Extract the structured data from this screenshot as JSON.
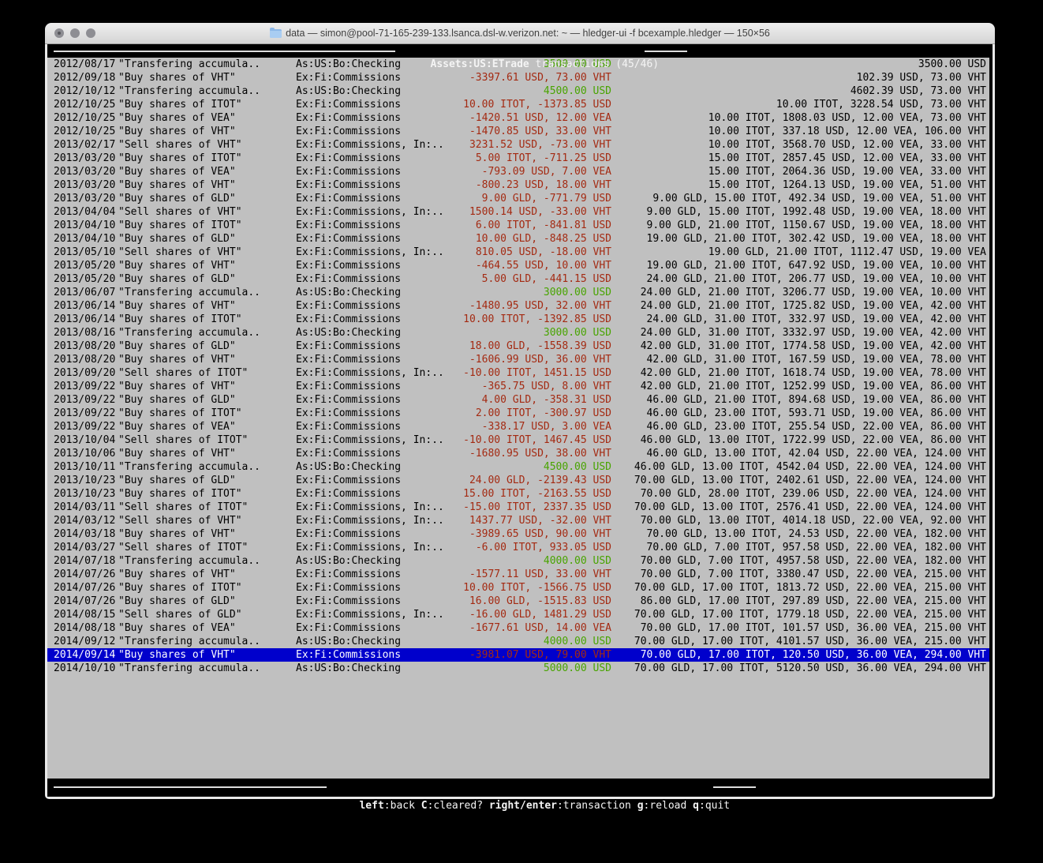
{
  "window": {
    "title": "data — simon@pool-71-165-239-133.lsanca.dsl-w.verizon.net: ~ — hledger-ui -f bcexample.hledger — 150×56",
    "buttons": [
      "close",
      "minimize",
      "zoom"
    ]
  },
  "screen": {
    "account": "Assets:US:ETrade",
    "subtitle": " transactions (45/46)"
  },
  "colors": {
    "terminal_bg": "#c0c0c0",
    "positive_amount": "#48a400",
    "negative_amount": "#a42a12",
    "selection_bg": "#0000cc",
    "band_bg": "#000000",
    "band_text": "#f4f4f4"
  },
  "footer": {
    "keys": [
      {
        "key": "left",
        "desc": ":back"
      },
      {
        "key": "C",
        "desc": ":cleared?"
      },
      {
        "key": "right/enter",
        "desc": ":transaction"
      },
      {
        "key": "g",
        "desc": ":reload"
      },
      {
        "key": "q",
        "desc": ":quit"
      }
    ]
  },
  "transactions": [
    {
      "date": "2012/08/17",
      "desc": "\"Transfering accumula..",
      "account": "As:US:Bo:Checking",
      "change": "3500.00 USD",
      "change_color": "green",
      "balance": "3500.00 USD",
      "selected": false
    },
    {
      "date": "2012/09/18",
      "desc": "\"Buy shares of VHT\"",
      "account": "Ex:Fi:Commissions",
      "change": "-3397.61 USD, 73.00 VHT",
      "change_color": "red",
      "balance": "102.39 USD, 73.00 VHT",
      "selected": false
    },
    {
      "date": "2012/10/12",
      "desc": "\"Transfering accumula..",
      "account": "As:US:Bo:Checking",
      "change": "4500.00 USD",
      "change_color": "green",
      "balance": "4602.39 USD, 73.00 VHT",
      "selected": false
    },
    {
      "date": "2012/10/25",
      "desc": "\"Buy shares of ITOT\"",
      "account": "Ex:Fi:Commissions",
      "change": "10.00 ITOT, -1373.85 USD",
      "change_color": "red",
      "balance": "10.00 ITOT, 3228.54 USD, 73.00 VHT",
      "selected": false
    },
    {
      "date": "2012/10/25",
      "desc": "\"Buy shares of VEA\"",
      "account": "Ex:Fi:Commissions",
      "change": "-1420.51 USD, 12.00 VEA",
      "change_color": "red",
      "balance": "10.00 ITOT, 1808.03 USD, 12.00 VEA, 73.00 VHT",
      "selected": false
    },
    {
      "date": "2012/10/25",
      "desc": "\"Buy shares of VHT\"",
      "account": "Ex:Fi:Commissions",
      "change": "-1470.85 USD, 33.00 VHT",
      "change_color": "red",
      "balance": "10.00 ITOT, 337.18 USD, 12.00 VEA, 106.00 VHT",
      "selected": false
    },
    {
      "date": "2013/02/17",
      "desc": "\"Sell shares of VHT\"",
      "account": "Ex:Fi:Commissions, In:..",
      "change": "3231.52 USD, -73.00 VHT",
      "change_color": "red",
      "balance": "10.00 ITOT, 3568.70 USD, 12.00 VEA, 33.00 VHT",
      "selected": false
    },
    {
      "date": "2013/03/20",
      "desc": "\"Buy shares of ITOT\"",
      "account": "Ex:Fi:Commissions",
      "change": "5.00 ITOT, -711.25 USD",
      "change_color": "red",
      "balance": "15.00 ITOT, 2857.45 USD, 12.00 VEA, 33.00 VHT",
      "selected": false
    },
    {
      "date": "2013/03/20",
      "desc": "\"Buy shares of VEA\"",
      "account": "Ex:Fi:Commissions",
      "change": "-793.09 USD, 7.00 VEA",
      "change_color": "red",
      "balance": "15.00 ITOT, 2064.36 USD, 19.00 VEA, 33.00 VHT",
      "selected": false
    },
    {
      "date": "2013/03/20",
      "desc": "\"Buy shares of VHT\"",
      "account": "Ex:Fi:Commissions",
      "change": "-800.23 USD, 18.00 VHT",
      "change_color": "red",
      "balance": "15.00 ITOT, 1264.13 USD, 19.00 VEA, 51.00 VHT",
      "selected": false
    },
    {
      "date": "2013/03/20",
      "desc": "\"Buy shares of GLD\"",
      "account": "Ex:Fi:Commissions",
      "change": "9.00 GLD, -771.79 USD",
      "change_color": "red",
      "balance": "9.00 GLD, 15.00 ITOT, 492.34 USD, 19.00 VEA, 51.00 VHT",
      "selected": false
    },
    {
      "date": "2013/04/04",
      "desc": "\"Sell shares of VHT\"",
      "account": "Ex:Fi:Commissions, In:..",
      "change": "1500.14 USD, -33.00 VHT",
      "change_color": "red",
      "balance": "9.00 GLD, 15.00 ITOT, 1992.48 USD, 19.00 VEA, 18.00 VHT",
      "selected": false
    },
    {
      "date": "2013/04/10",
      "desc": "\"Buy shares of ITOT\"",
      "account": "Ex:Fi:Commissions",
      "change": "6.00 ITOT, -841.81 USD",
      "change_color": "red",
      "balance": "9.00 GLD, 21.00 ITOT, 1150.67 USD, 19.00 VEA, 18.00 VHT",
      "selected": false
    },
    {
      "date": "2013/04/10",
      "desc": "\"Buy shares of GLD\"",
      "account": "Ex:Fi:Commissions",
      "change": "10.00 GLD, -848.25 USD",
      "change_color": "red",
      "balance": "19.00 GLD, 21.00 ITOT, 302.42 USD, 19.00 VEA, 18.00 VHT",
      "selected": false
    },
    {
      "date": "2013/05/10",
      "desc": "\"Sell shares of VHT\"",
      "account": "Ex:Fi:Commissions, In:..",
      "change": "810.05 USD, -18.00 VHT",
      "change_color": "red",
      "balance": "19.00 GLD, 21.00 ITOT, 1112.47 USD, 19.00 VEA",
      "selected": false
    },
    {
      "date": "2013/05/20",
      "desc": "\"Buy shares of VHT\"",
      "account": "Ex:Fi:Commissions",
      "change": "-464.55 USD, 10.00 VHT",
      "change_color": "red",
      "balance": "19.00 GLD, 21.00 ITOT, 647.92 USD, 19.00 VEA, 10.00 VHT",
      "selected": false
    },
    {
      "date": "2013/05/20",
      "desc": "\"Buy shares of GLD\"",
      "account": "Ex:Fi:Commissions",
      "change": "5.00 GLD, -441.15 USD",
      "change_color": "red",
      "balance": "24.00 GLD, 21.00 ITOT, 206.77 USD, 19.00 VEA, 10.00 VHT",
      "selected": false
    },
    {
      "date": "2013/06/07",
      "desc": "\"Transfering accumula..",
      "account": "As:US:Bo:Checking",
      "change": "3000.00 USD",
      "change_color": "green",
      "balance": "24.00 GLD, 21.00 ITOT, 3206.77 USD, 19.00 VEA, 10.00 VHT",
      "selected": false
    },
    {
      "date": "2013/06/14",
      "desc": "\"Buy shares of VHT\"",
      "account": "Ex:Fi:Commissions",
      "change": "-1480.95 USD, 32.00 VHT",
      "change_color": "red",
      "balance": "24.00 GLD, 21.00 ITOT, 1725.82 USD, 19.00 VEA, 42.00 VHT",
      "selected": false
    },
    {
      "date": "2013/06/14",
      "desc": "\"Buy shares of ITOT\"",
      "account": "Ex:Fi:Commissions",
      "change": "10.00 ITOT, -1392.85 USD",
      "change_color": "red",
      "balance": "24.00 GLD, 31.00 ITOT, 332.97 USD, 19.00 VEA, 42.00 VHT",
      "selected": false
    },
    {
      "date": "2013/08/16",
      "desc": "\"Transfering accumula..",
      "account": "As:US:Bo:Checking",
      "change": "3000.00 USD",
      "change_color": "green",
      "balance": "24.00 GLD, 31.00 ITOT, 3332.97 USD, 19.00 VEA, 42.00 VHT",
      "selected": false
    },
    {
      "date": "2013/08/20",
      "desc": "\"Buy shares of GLD\"",
      "account": "Ex:Fi:Commissions",
      "change": "18.00 GLD, -1558.39 USD",
      "change_color": "red",
      "balance": "42.00 GLD, 31.00 ITOT, 1774.58 USD, 19.00 VEA, 42.00 VHT",
      "selected": false
    },
    {
      "date": "2013/08/20",
      "desc": "\"Buy shares of VHT\"",
      "account": "Ex:Fi:Commissions",
      "change": "-1606.99 USD, 36.00 VHT",
      "change_color": "red",
      "balance": "42.00 GLD, 31.00 ITOT, 167.59 USD, 19.00 VEA, 78.00 VHT",
      "selected": false
    },
    {
      "date": "2013/09/20",
      "desc": "\"Sell shares of ITOT\"",
      "account": "Ex:Fi:Commissions, In:..",
      "change": "-10.00 ITOT, 1451.15 USD",
      "change_color": "red",
      "balance": "42.00 GLD, 21.00 ITOT, 1618.74 USD, 19.00 VEA, 78.00 VHT",
      "selected": false
    },
    {
      "date": "2013/09/22",
      "desc": "\"Buy shares of VHT\"",
      "account": "Ex:Fi:Commissions",
      "change": "-365.75 USD, 8.00 VHT",
      "change_color": "red",
      "balance": "42.00 GLD, 21.00 ITOT, 1252.99 USD, 19.00 VEA, 86.00 VHT",
      "selected": false
    },
    {
      "date": "2013/09/22",
      "desc": "\"Buy shares of GLD\"",
      "account": "Ex:Fi:Commissions",
      "change": "4.00 GLD, -358.31 USD",
      "change_color": "red",
      "balance": "46.00 GLD, 21.00 ITOT, 894.68 USD, 19.00 VEA, 86.00 VHT",
      "selected": false
    },
    {
      "date": "2013/09/22",
      "desc": "\"Buy shares of ITOT\"",
      "account": "Ex:Fi:Commissions",
      "change": "2.00 ITOT, -300.97 USD",
      "change_color": "red",
      "balance": "46.00 GLD, 23.00 ITOT, 593.71 USD, 19.00 VEA, 86.00 VHT",
      "selected": false
    },
    {
      "date": "2013/09/22",
      "desc": "\"Buy shares of VEA\"",
      "account": "Ex:Fi:Commissions",
      "change": "-338.17 USD, 3.00 VEA",
      "change_color": "red",
      "balance": "46.00 GLD, 23.00 ITOT, 255.54 USD, 22.00 VEA, 86.00 VHT",
      "selected": false
    },
    {
      "date": "2013/10/04",
      "desc": "\"Sell shares of ITOT\"",
      "account": "Ex:Fi:Commissions, In:..",
      "change": "-10.00 ITOT, 1467.45 USD",
      "change_color": "red",
      "balance": "46.00 GLD, 13.00 ITOT, 1722.99 USD, 22.00 VEA, 86.00 VHT",
      "selected": false
    },
    {
      "date": "2013/10/06",
      "desc": "\"Buy shares of VHT\"",
      "account": "Ex:Fi:Commissions",
      "change": "-1680.95 USD, 38.00 VHT",
      "change_color": "red",
      "balance": "46.00 GLD, 13.00 ITOT, 42.04 USD, 22.00 VEA, 124.00 VHT",
      "selected": false
    },
    {
      "date": "2013/10/11",
      "desc": "\"Transfering accumula..",
      "account": "As:US:Bo:Checking",
      "change": "4500.00 USD",
      "change_color": "green",
      "balance": "46.00 GLD, 13.00 ITOT, 4542.04 USD, 22.00 VEA, 124.00 VHT",
      "selected": false
    },
    {
      "date": "2013/10/23",
      "desc": "\"Buy shares of GLD\"",
      "account": "Ex:Fi:Commissions",
      "change": "24.00 GLD, -2139.43 USD",
      "change_color": "red",
      "balance": "70.00 GLD, 13.00 ITOT, 2402.61 USD, 22.00 VEA, 124.00 VHT",
      "selected": false
    },
    {
      "date": "2013/10/23",
      "desc": "\"Buy shares of ITOT\"",
      "account": "Ex:Fi:Commissions",
      "change": "15.00 ITOT, -2163.55 USD",
      "change_color": "red",
      "balance": "70.00 GLD, 28.00 ITOT, 239.06 USD, 22.00 VEA, 124.00 VHT",
      "selected": false
    },
    {
      "date": "2014/03/11",
      "desc": "\"Sell shares of ITOT\"",
      "account": "Ex:Fi:Commissions, In:..",
      "change": "-15.00 ITOT, 2337.35 USD",
      "change_color": "red",
      "balance": "70.00 GLD, 13.00 ITOT, 2576.41 USD, 22.00 VEA, 124.00 VHT",
      "selected": false
    },
    {
      "date": "2014/03/12",
      "desc": "\"Sell shares of VHT\"",
      "account": "Ex:Fi:Commissions, In:..",
      "change": "1437.77 USD, -32.00 VHT",
      "change_color": "red",
      "balance": "70.00 GLD, 13.00 ITOT, 4014.18 USD, 22.00 VEA, 92.00 VHT",
      "selected": false
    },
    {
      "date": "2014/03/18",
      "desc": "\"Buy shares of VHT\"",
      "account": "Ex:Fi:Commissions",
      "change": "-3989.65 USD, 90.00 VHT",
      "change_color": "red",
      "balance": "70.00 GLD, 13.00 ITOT, 24.53 USD, 22.00 VEA, 182.00 VHT",
      "selected": false
    },
    {
      "date": "2014/03/27",
      "desc": "\"Sell shares of ITOT\"",
      "account": "Ex:Fi:Commissions, In:..",
      "change": "-6.00 ITOT, 933.05 USD",
      "change_color": "red",
      "balance": "70.00 GLD, 7.00 ITOT, 957.58 USD, 22.00 VEA, 182.00 VHT",
      "selected": false
    },
    {
      "date": "2014/07/18",
      "desc": "\"Transfering accumula..",
      "account": "As:US:Bo:Checking",
      "change": "4000.00 USD",
      "change_color": "green",
      "balance": "70.00 GLD, 7.00 ITOT, 4957.58 USD, 22.00 VEA, 182.00 VHT",
      "selected": false
    },
    {
      "date": "2014/07/26",
      "desc": "\"Buy shares of VHT\"",
      "account": "Ex:Fi:Commissions",
      "change": "-1577.11 USD, 33.00 VHT",
      "change_color": "red",
      "balance": "70.00 GLD, 7.00 ITOT, 3380.47 USD, 22.00 VEA, 215.00 VHT",
      "selected": false
    },
    {
      "date": "2014/07/26",
      "desc": "\"Buy shares of ITOT\"",
      "account": "Ex:Fi:Commissions",
      "change": "10.00 ITOT, -1566.75 USD",
      "change_color": "red",
      "balance": "70.00 GLD, 17.00 ITOT, 1813.72 USD, 22.00 VEA, 215.00 VHT",
      "selected": false
    },
    {
      "date": "2014/07/26",
      "desc": "\"Buy shares of GLD\"",
      "account": "Ex:Fi:Commissions",
      "change": "16.00 GLD, -1515.83 USD",
      "change_color": "red",
      "balance": "86.00 GLD, 17.00 ITOT, 297.89 USD, 22.00 VEA, 215.00 VHT",
      "selected": false
    },
    {
      "date": "2014/08/15",
      "desc": "\"Sell shares of GLD\"",
      "account": "Ex:Fi:Commissions, In:..",
      "change": "-16.00 GLD, 1481.29 USD",
      "change_color": "red",
      "balance": "70.00 GLD, 17.00 ITOT, 1779.18 USD, 22.00 VEA, 215.00 VHT",
      "selected": false
    },
    {
      "date": "2014/08/18",
      "desc": "\"Buy shares of VEA\"",
      "account": "Ex:Fi:Commissions",
      "change": "-1677.61 USD, 14.00 VEA",
      "change_color": "red",
      "balance": "70.00 GLD, 17.00 ITOT, 101.57 USD, 36.00 VEA, 215.00 VHT",
      "selected": false
    },
    {
      "date": "2014/09/12",
      "desc": "\"Transfering accumula..",
      "account": "As:US:Bo:Checking",
      "change": "4000.00 USD",
      "change_color": "green",
      "balance": "70.00 GLD, 17.00 ITOT, 4101.57 USD, 36.00 VEA, 215.00 VHT",
      "selected": false
    },
    {
      "date": "2014/09/14",
      "desc": "\"Buy shares of VHT\"",
      "account": "Ex:Fi:Commissions",
      "change": "-3981.07 USD, 79.00 VHT",
      "change_color": "red",
      "balance": "70.00 GLD, 17.00 ITOT, 120.50 USD, 36.00 VEA, 294.00 VHT",
      "selected": true
    },
    {
      "date": "2014/10/10",
      "desc": "\"Transfering accumula..",
      "account": "As:US:Bo:Checking",
      "change": "5000.00 USD",
      "change_color": "green",
      "balance": "70.00 GLD, 17.00 ITOT, 5120.50 USD, 36.00 VEA, 294.00 VHT",
      "selected": false
    }
  ]
}
